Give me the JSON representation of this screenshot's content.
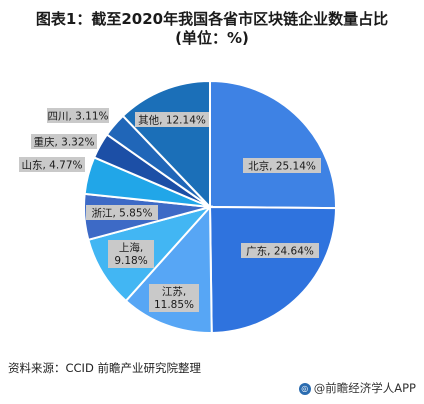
{
  "figure": {
    "title_line1": "图表1：截至2020年我国各省市区块链企业数量占比",
    "title_line2": "(单位：%)",
    "source": "资料来源：CCID 前瞻产业研究院整理",
    "brand": "@前瞻经济学人APP"
  },
  "chart_data": {
    "type": "pie",
    "title": "图表1：截至2020年我国各省市区块链企业数量占比",
    "subtitle": "(单位：%)",
    "slices": [
      {
        "label": "北京",
        "value": 25.14,
        "text": "北京, 25.14%",
        "color": "#3e82e4"
      },
      {
        "label": "广东",
        "value": 24.64,
        "text": "广东, 24.64%",
        "color": "#2f73de"
      },
      {
        "label": "江苏",
        "value": 11.85,
        "text": "江苏, 11.85%",
        "color": "#57a6f5"
      },
      {
        "label": "上海",
        "value": 9.18,
        "text": "上海, 9.18%",
        "color": "#42b6f3"
      },
      {
        "label": "浙江",
        "value": 5.85,
        "text": "浙江, 5.85%",
        "color": "#3d6ac6"
      },
      {
        "label": "山东",
        "value": 4.77,
        "text": "山东, 4.77%",
        "color": "#21a6e8"
      },
      {
        "label": "重庆",
        "value": 3.32,
        "text": "重庆, 3.32%",
        "color": "#1c4fa6"
      },
      {
        "label": "四川",
        "value": 3.11,
        "text": "四川, 3.11%",
        "color": "#2066b8"
      },
      {
        "label": "其他",
        "value": 12.14,
        "text": "其他, 12.14%",
        "color": "#1b6fb8"
      }
    ]
  }
}
